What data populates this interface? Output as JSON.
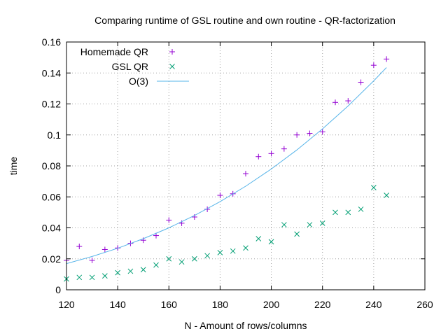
{
  "chart_data": {
    "type": "scatter",
    "title": "Comparing runtime of GSL routine and own routine - QR-factorization",
    "xlabel": "N - Amount of rows/columns",
    "ylabel": "time",
    "xlim": [
      120,
      260
    ],
    "ylim": [
      0,
      0.16
    ],
    "xticks": [
      120,
      140,
      160,
      180,
      200,
      220,
      240,
      260
    ],
    "yticks": [
      0,
      0.02,
      0.04,
      0.06,
      0.08,
      0.1,
      0.12,
      0.14,
      0.16
    ],
    "xtick_labels": [
      "120",
      "140",
      "160",
      "180",
      "200",
      "220",
      "240",
      "260"
    ],
    "ytick_labels": [
      "0",
      "0.02",
      "0.04",
      "0.06",
      "0.08",
      "0.1",
      "0.12",
      "0.14",
      "0.16"
    ],
    "grid": true,
    "legend_position": "top-left",
    "series": [
      {
        "name": "Homemade QR",
        "marker": "plus",
        "color": "#9400d3",
        "x": [
          120,
          125,
          130,
          135,
          140,
          145,
          150,
          155,
          160,
          165,
          170,
          175,
          180,
          185,
          190,
          195,
          200,
          205,
          210,
          215,
          220,
          225,
          230,
          235,
          240,
          245
        ],
        "y": [
          0.019,
          0.028,
          0.019,
          0.026,
          0.027,
          0.03,
          0.032,
          0.035,
          0.045,
          0.043,
          0.047,
          0.052,
          0.061,
          0.062,
          0.075,
          0.086,
          0.088,
          0.091,
          0.1,
          0.101,
          0.102,
          0.121,
          0.122,
          0.134,
          0.145,
          0.149
        ]
      },
      {
        "name": "GSL QR",
        "marker": "cross",
        "color": "#009e73",
        "x": [
          120,
          125,
          130,
          135,
          140,
          145,
          150,
          155,
          160,
          165,
          170,
          175,
          180,
          185,
          190,
          195,
          200,
          205,
          210,
          215,
          220,
          225,
          230,
          235,
          240,
          245
        ],
        "y": [
          0.007,
          0.008,
          0.008,
          0.009,
          0.011,
          0.012,
          0.013,
          0.016,
          0.02,
          0.018,
          0.02,
          0.022,
          0.024,
          0.025,
          0.027,
          0.033,
          0.031,
          0.042,
          0.036,
          0.042,
          0.043,
          0.05,
          0.05,
          0.052,
          0.066,
          0.061
        ]
      },
      {
        "name": "O(3)",
        "marker": "line",
        "color": "#56b4e9",
        "x": [
          120,
          130,
          140,
          150,
          160,
          170,
          180,
          190,
          200,
          210,
          220,
          230,
          240,
          245
        ],
        "y": [
          0.0169,
          0.0215,
          0.0268,
          0.033,
          0.04,
          0.048,
          0.0569,
          0.0669,
          0.078,
          0.0903,
          0.1039,
          0.1187,
          0.1349,
          0.1435
        ]
      }
    ]
  }
}
